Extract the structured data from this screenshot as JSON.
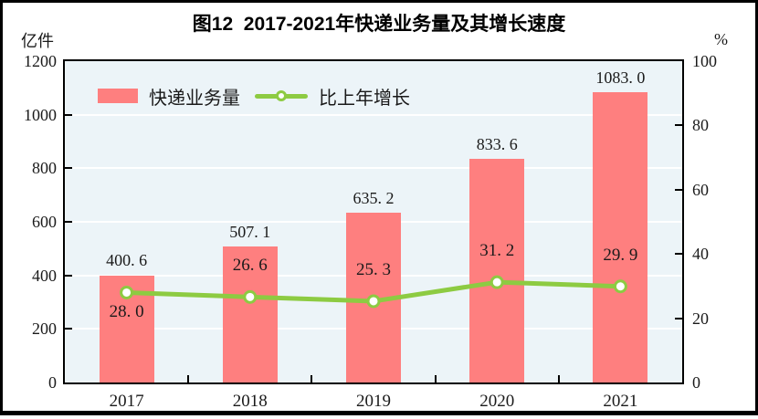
{
  "figure": {
    "title": "图12  2017-2021年快递业务量及其增长速度",
    "left_axis_unit": "亿件",
    "right_axis_unit": "%"
  },
  "legend": {
    "items": [
      {
        "label": "快递业务量",
        "marker": "bar-swatch",
        "color": "#FE7F7F"
      },
      {
        "label": "比上年增长",
        "marker": "line-with-circle",
        "color": "#8DCB42"
      }
    ]
  },
  "chart_data": {
    "type": "bar+line",
    "title": "图12  2017-2021年快递业务量及其增长速度",
    "categories": [
      "2017",
      "2018",
      "2019",
      "2020",
      "2021"
    ],
    "series": [
      {
        "name": "快递业务量",
        "type": "bar",
        "axis": "left",
        "unit": "亿件",
        "values": [
          400.6,
          507.1,
          635.2,
          833.6,
          1083.0
        ],
        "value_labels": [
          "400. 6",
          "507. 1",
          "635. 2",
          "833. 6",
          "1083. 0"
        ],
        "color": "#FE7F7F"
      },
      {
        "name": "比上年增长",
        "type": "line",
        "axis": "right",
        "unit": "%",
        "values": [
          28.0,
          26.6,
          25.3,
          31.2,
          29.9
        ],
        "value_labels": [
          "28. 0",
          "26. 6",
          "25. 3",
          "31. 2",
          "29. 9"
        ],
        "label_placement": [
          "below-marker",
          "above-marker",
          "above-marker",
          "above-marker",
          "above-marker"
        ],
        "color": "#8DCB42",
        "marker": "circle-white-fill-green-ring"
      }
    ],
    "left_axis": {
      "unit": "亿件",
      "min": 0,
      "max": 1200,
      "tick_interval": 200,
      "tick_labels": [
        "0",
        "200",
        "400",
        "600",
        "800",
        "1000",
        "1200"
      ]
    },
    "right_axis": {
      "unit": "%",
      "min": 0,
      "max": 100,
      "tick_interval": 20,
      "tick_labels": [
        "0",
        "20",
        "40",
        "60",
        "80",
        "100"
      ]
    },
    "grid": "horizontal white gridlines at each left-axis tick level, drawn behind bars on light blue background",
    "legend_position": "top-left inside plot"
  },
  "colors": {
    "bar_fill": "#FE7F7F",
    "line_stroke": "#8DCB42",
    "marker_fill": "#FFFFFF",
    "plot_background": "#ECF4F8",
    "gridline": "#FFFFFF",
    "axis_and_frame": "#000000",
    "text": "#1A1A1A"
  }
}
